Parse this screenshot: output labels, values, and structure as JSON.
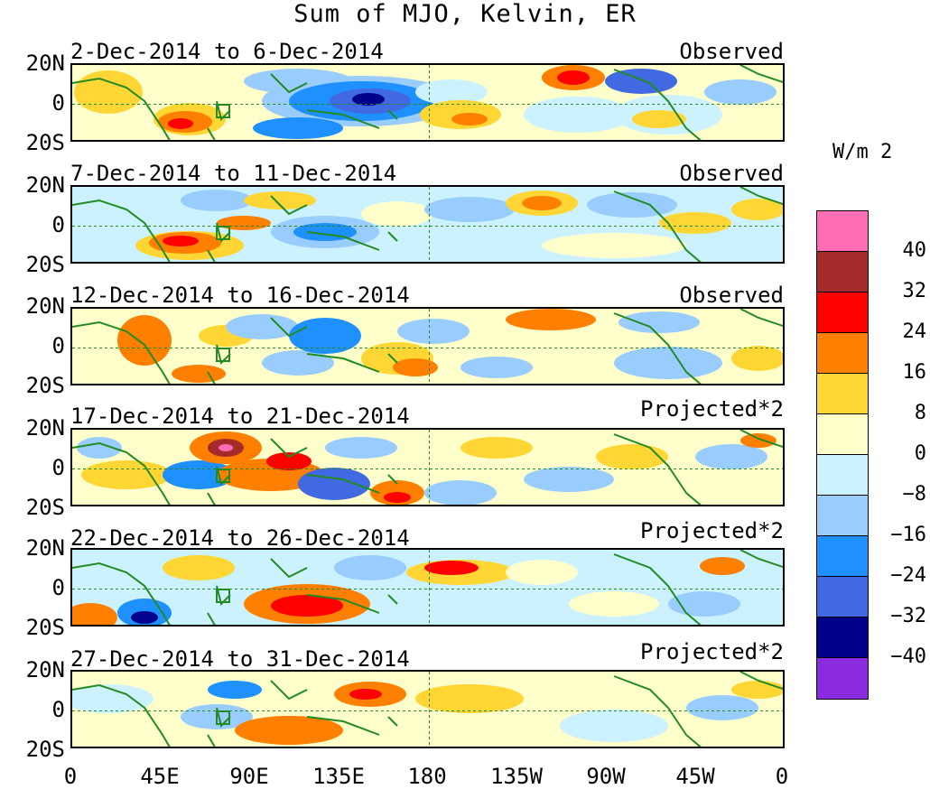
{
  "title": "Sum of MJO, Kelvin, ER",
  "panels": [
    {
      "dates": "2-Dec-2014 to 6-Dec-2014",
      "kind": "Observed"
    },
    {
      "dates": "7-Dec-2014 to 11-Dec-2014",
      "kind": "Observed"
    },
    {
      "dates": "12-Dec-2014 to 16-Dec-2014",
      "kind": "Observed"
    },
    {
      "dates": "17-Dec-2014 to 21-Dec-2014",
      "kind": "Projected*2"
    },
    {
      "dates": "22-Dec-2014 to 26-Dec-2014",
      "kind": "Projected*2"
    },
    {
      "dates": "27-Dec-2014 to 31-Dec-2014",
      "kind": "Projected*2"
    }
  ],
  "y_ticks": [
    "20N",
    "0",
    "20S"
  ],
  "x_ticks": [
    "0",
    "45E",
    "90E",
    "135E",
    "180",
    "135W",
    "90W",
    "45W",
    "0"
  ],
  "colorbar": {
    "unit": "W/m 2",
    "labels": [
      "40",
      "32",
      "24",
      "16",
      "8",
      "0",
      "−8",
      "−16",
      "−24",
      "−32",
      "−40"
    ],
    "colors": [
      "#ff6eb4",
      "#a52a2a",
      "#ff0000",
      "#ff7f00",
      "#ffd633",
      "#ffffcc",
      "#ccf2ff",
      "#99ccff",
      "#1e90ff",
      "#4169e1",
      "#00008b",
      "#8a2be2"
    ]
  },
  "map_features": {
    "land_color": "#228b22",
    "zero_line_color": "#228b22"
  }
}
